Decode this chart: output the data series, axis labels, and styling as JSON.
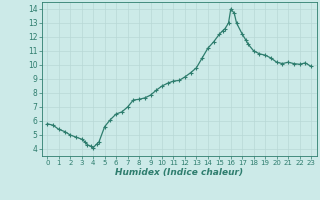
{
  "x": [
    0,
    0.5,
    1,
    1.5,
    2,
    2.5,
    3,
    3.3,
    3.5,
    3.8,
    4,
    4.3,
    4.5,
    5,
    5.5,
    6,
    6.5,
    7,
    7.5,
    8,
    8.5,
    9,
    9.5,
    10,
    10.5,
    11,
    11.5,
    12,
    12.5,
    13,
    13.5,
    14,
    14.5,
    15,
    15.3,
    15.5,
    15.8,
    16,
    16.3,
    16.5,
    17,
    17.3,
    17.5,
    18,
    18.5,
    19,
    19.5,
    20,
    20.5,
    21,
    21.5,
    22,
    22.5,
    23
  ],
  "y": [
    5.8,
    5.7,
    5.4,
    5.25,
    5.0,
    4.85,
    4.7,
    4.5,
    4.3,
    4.2,
    4.1,
    4.35,
    4.5,
    5.6,
    6.1,
    6.5,
    6.65,
    7.0,
    7.5,
    7.55,
    7.65,
    7.85,
    8.2,
    8.5,
    8.7,
    8.85,
    8.9,
    9.15,
    9.45,
    9.8,
    10.5,
    11.2,
    11.65,
    12.2,
    12.45,
    12.6,
    13.0,
    14.0,
    13.7,
    13.0,
    12.2,
    11.8,
    11.5,
    11.0,
    10.8,
    10.7,
    10.5,
    10.2,
    10.1,
    10.2,
    10.1,
    10.05,
    10.15,
    9.9
  ],
  "xlabel": "Humidex (Indice chaleur)",
  "line_color": "#2e7d6e",
  "marker_color": "#2e7d6e",
  "bg_color": "#cceae8",
  "grid_color": "#b8d8d6",
  "xlim": [
    -0.5,
    23.5
  ],
  "ylim": [
    3.5,
    14.5
  ],
  "yticks": [
    4,
    5,
    6,
    7,
    8,
    9,
    10,
    11,
    12,
    13,
    14
  ],
  "xticks": [
    0,
    1,
    2,
    3,
    4,
    5,
    6,
    7,
    8,
    9,
    10,
    11,
    12,
    13,
    14,
    15,
    16,
    17,
    18,
    19,
    20,
    21,
    22,
    23
  ]
}
